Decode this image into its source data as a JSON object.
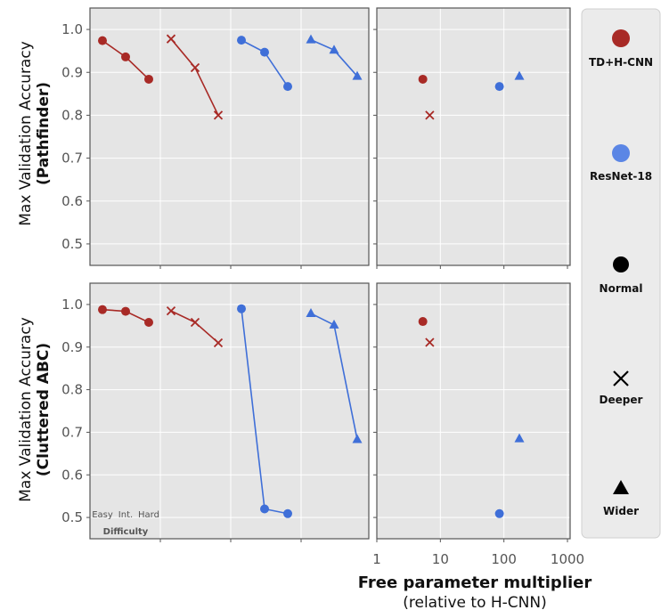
{
  "chart_data": {
    "type": "line",
    "y_axis_label": "Max Validation Accuracy",
    "row_labels": [
      "(Pathfinder)",
      "(Cluttered ABC)"
    ],
    "ylim": [
      0.45,
      1.05
    ],
    "y_ticks": [
      "0.5",
      "0.6",
      "0.7",
      "0.8",
      "0.9",
      "1.0"
    ],
    "x_axis_label": "Free parameter multiplier",
    "x_axis_sublabel": "(relative to H-CNN)",
    "x_scale": "log",
    "x_ticks": [
      "1",
      "10",
      "100",
      "1000"
    ],
    "difficulty_label": "Difficulty",
    "difficulty_ticks": [
      "Easy",
      "Int.",
      "Hard"
    ],
    "colors": {
      "td_hcnn": "#a82a26",
      "resnet": "#3f6fd8"
    },
    "legend": [
      {
        "label": "TD+H-CNN",
        "marker": "circle",
        "color": "#a82a26"
      },
      {
        "label": "ResNet-18",
        "marker": "circle",
        "color": "#5b86e5"
      },
      {
        "label": "Normal",
        "marker": "circle",
        "color": "#000000"
      },
      {
        "label": "Deeper",
        "marker": "x",
        "color": "#000000"
      },
      {
        "label": "Wider",
        "marker": "triangle",
        "color": "#000000"
      }
    ],
    "difficulty_series": {
      "pathfinder": [
        {
          "model": "TD+H-CNN",
          "variant": "Normal",
          "values": [
            0.974,
            0.936,
            0.884
          ]
        },
        {
          "model": "TD+H-CNN",
          "variant": "Deeper",
          "values": [
            0.978,
            0.911,
            0.8
          ]
        },
        {
          "model": "ResNet-18",
          "variant": "Normal",
          "values": [
            0.975,
            0.947,
            0.867
          ]
        },
        {
          "model": "ResNet-18",
          "variant": "Wider",
          "values": [
            0.976,
            0.952,
            0.891
          ]
        }
      ],
      "cluttered_abc": [
        {
          "model": "TD+H-CNN",
          "variant": "Normal",
          "values": [
            0.988,
            0.984,
            0.958
          ]
        },
        {
          "model": "TD+H-CNN",
          "variant": "Deeper",
          "values": [
            0.985,
            0.958,
            0.91
          ]
        },
        {
          "model": "ResNet-18",
          "variant": "Normal",
          "values": [
            0.99,
            0.52,
            0.509
          ]
        },
        {
          "model": "ResNet-18",
          "variant": "Wider",
          "values": [
            0.979,
            0.952,
            0.683
          ]
        }
      ]
    },
    "parameter_points": {
      "pathfinder": [
        {
          "model": "TD+H-CNN",
          "variant": "Normal",
          "x": 5.3,
          "y": 0.884
        },
        {
          "model": "TD+H-CNN",
          "variant": "Deeper",
          "x": 6.8,
          "y": 0.8
        },
        {
          "model": "ResNet-18",
          "variant": "Normal",
          "x": 85,
          "y": 0.867
        },
        {
          "model": "ResNet-18",
          "variant": "Wider",
          "x": 175,
          "y": 0.891
        }
      ],
      "cluttered_abc": [
        {
          "model": "TD+H-CNN",
          "variant": "Normal",
          "x": 5.3,
          "y": 0.96
        },
        {
          "model": "TD+H-CNN",
          "variant": "Deeper",
          "x": 6.8,
          "y": 0.911
        },
        {
          "model": "ResNet-18",
          "variant": "Normal",
          "x": 85,
          "y": 0.509
        },
        {
          "model": "ResNet-18",
          "variant": "Wider",
          "x": 175,
          "y": 0.685
        }
      ]
    }
  }
}
